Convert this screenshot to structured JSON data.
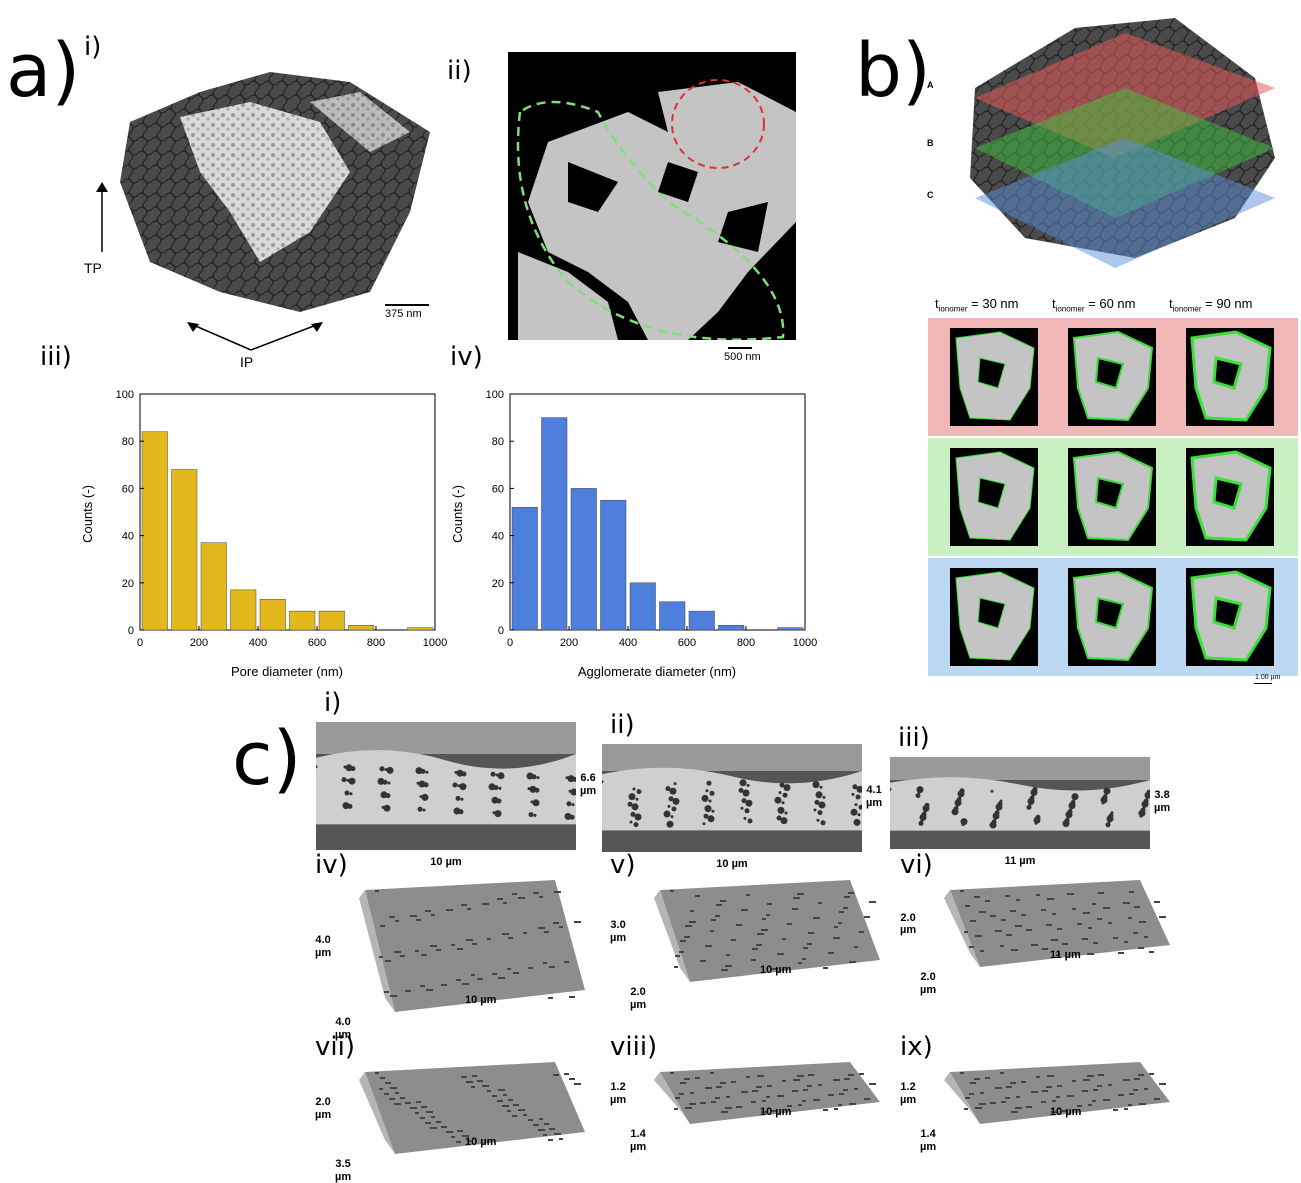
{
  "panel_labels": {
    "a": "a)",
    "b": "b)",
    "c": "c)"
  },
  "panel_a": {
    "sub_i": "i)",
    "sub_ii": "ii)",
    "sub_iii": "iii)",
    "sub_iv": "iv)",
    "axis_tp": "TP",
    "axis_ip": "IP",
    "scale_i": "375 nm",
    "scale_ii": "500 nm"
  },
  "panel_b": {
    "layers": [
      "A",
      "B",
      "C"
    ],
    "column_headers": [
      {
        "t": "t",
        "sub": "ionomer",
        "rest": " = 30 nm"
      },
      {
        "t": "t",
        "sub": "ionomer",
        "rest": " = 60 nm"
      },
      {
        "t": "t",
        "sub": "ionomer",
        "rest": " = 90 nm"
      }
    ],
    "scale": "1.00 µm",
    "row_colors": [
      "#f2b8b8",
      "#c9f0c0",
      "#bcd8f2"
    ]
  },
  "panel_c": {
    "sections": [
      {
        "label": "i)",
        "height": "6.6\nµm",
        "width": "10 µm"
      },
      {
        "label": "ii)",
        "height": "4.1\nµm",
        "width": "10 µm"
      },
      {
        "label": "iii)",
        "height": "3.8\nµm",
        "width": "11 µm"
      }
    ],
    "volumes": [
      {
        "label": "iv)",
        "h": "4.0\nµm",
        "d": "4.0\nµm",
        "w": "10 µm"
      },
      {
        "label": "v)",
        "h": "3.0\nµm",
        "d": "2.0\nµm",
        "w": "10 µm"
      },
      {
        "label": "vi)",
        "h": "2.0\nµm",
        "d": "2.0\nµm",
        "w": "11 µm"
      },
      {
        "label": "vii)",
        "h": "2.0\nµm",
        "d": "3.5\nµm",
        "w": "10 µm"
      },
      {
        "label": "viii)",
        "h": "1.2\nµm",
        "d": "1.4\nµm",
        "w": "10 µm"
      },
      {
        "label": "ix)",
        "h": "1.2\nµm",
        "d": "1.4\nµm",
        "w": "10 µm"
      }
    ]
  },
  "chart_data": [
    {
      "type": "bar",
      "xlabel": "Pore diameter (nm)",
      "ylabel": "Counts (-)",
      "x": [
        50,
        150,
        250,
        350,
        450,
        550,
        650,
        750,
        950
      ],
      "values": [
        84,
        68,
        37,
        17,
        13,
        8,
        8,
        2,
        1
      ],
      "xlim": [
        0,
        1000
      ],
      "ylim": [
        0,
        100
      ],
      "xticks": [
        0,
        200,
        400,
        600,
        800,
        1000
      ],
      "yticks": [
        0,
        20,
        40,
        60,
        80,
        100
      ],
      "color": "#e3b81c"
    },
    {
      "type": "bar",
      "xlabel": "Agglomerate diameter (nm)",
      "ylabel": "Counts (-)",
      "x": [
        50,
        150,
        250,
        350,
        450,
        550,
        650,
        750,
        950
      ],
      "values": [
        52,
        90,
        60,
        55,
        20,
        12,
        8,
        2,
        1
      ],
      "xlim": [
        0,
        1000
      ],
      "ylim": [
        0,
        100
      ],
      "xticks": [
        0,
        200,
        400,
        600,
        800,
        1000
      ],
      "yticks": [
        0,
        20,
        40,
        60,
        80,
        100
      ],
      "color": "#4f7fdc"
    }
  ]
}
